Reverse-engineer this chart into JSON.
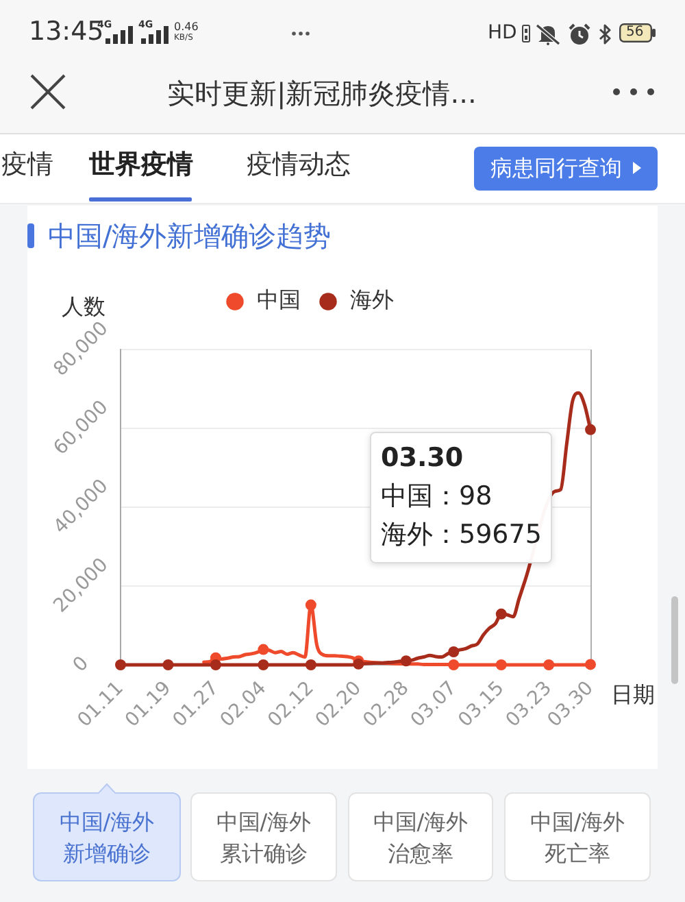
{
  "chart_data": {
    "type": "line",
    "title": "中国/海外新增确诊趋势",
    "ylabel": "人数",
    "xlabel": "日期",
    "categories": [
      "01.11",
      null,
      null,
      null,
      null,
      null,
      null,
      null,
      "01.19",
      null,
      null,
      null,
      null,
      null,
      null,
      null,
      "01.27",
      null,
      null,
      null,
      null,
      null,
      null,
      null,
      "02.04",
      null,
      null,
      null,
      null,
      null,
      null,
      null,
      "02.12",
      null,
      null,
      null,
      null,
      null,
      null,
      null,
      "02.20",
      null,
      null,
      null,
      null,
      null,
      null,
      null,
      "02.28",
      null,
      null,
      null,
      null,
      null,
      null,
      null,
      "03.07",
      null,
      null,
      null,
      null,
      null,
      null,
      null,
      "03.15",
      null,
      null,
      null,
      null,
      null,
      null,
      null,
      "03.23",
      null,
      null,
      null,
      null,
      null,
      null,
      "03.30"
    ],
    "series": [
      {
        "name": "中国",
        "color": "#ee4a2b",
        "values": [
          null,
          null,
          null,
          null,
          null,
          null,
          null,
          null,
          null,
          null,
          null,
          null,
          null,
          null,
          700,
          800,
          1800,
          1500,
          1700,
          2000,
          2100,
          2600,
          2800,
          3200,
          3900,
          3700,
          3100,
          3400,
          2700,
          3100,
          2500,
          2000,
          15200,
          5000,
          2600,
          2300,
          2300,
          2200,
          2100,
          1800,
          1000,
          null,
          null,
          null,
          null,
          null,
          null,
          null,
          null,
          null,
          200,
          100,
          100,
          100,
          100,
          100,
          0,
          0,
          0,
          0,
          0,
          0,
          0,
          0,
          0,
          0,
          0,
          0,
          0,
          0,
          0,
          0,
          0,
          0,
          0,
          0,
          0,
          0,
          0,
          98
        ]
      },
      {
        "name": "海外",
        "color": "#a82c1c",
        "values": [
          0,
          0,
          0,
          0,
          0,
          0,
          0,
          0,
          0,
          0,
          0,
          0,
          0,
          0,
          0,
          0,
          0,
          0,
          0,
          0,
          0,
          0,
          0,
          0,
          0,
          0,
          0,
          0,
          0,
          0,
          0,
          0,
          0,
          0,
          0,
          0,
          0,
          0,
          0,
          0,
          200,
          300,
          400,
          500,
          500,
          600,
          700,
          900,
          1000,
          1200,
          1700,
          2000,
          2400,
          2100,
          2000,
          2800,
          3300,
          3800,
          4100,
          4800,
          5300,
          7600,
          9300,
          10400,
          12900,
          12700,
          12200,
          16800,
          21400,
          null,
          null,
          null,
          null,
          44000,
          44500,
          56000,
          67000,
          69000,
          66000,
          59675
        ]
      }
    ],
    "ylim": [
      0,
      80000
    ],
    "yticks": [
      0,
      {
        "value": 20000,
        "label": "20,000"
      },
      {
        "value": 40000,
        "label": "40,000"
      },
      {
        "value": 60000,
        "label": "60,000"
      },
      {
        "value": 80000,
        "label": "80,000"
      }
    ],
    "grid": "y",
    "legend": "top",
    "line_style": "solid",
    "annotations": [
      "13:45",
      "4G",
      "4G",
      "0.46",
      "KB/S",
      "HD",
      "56",
      "实时更新|新冠肺炎疫情...",
      "疫情",
      "世界疫情",
      "疫情动态",
      "病患同行查询",
      "03.30",
      "中国：98",
      "海外：59675",
      "中国/海外新增确诊",
      "中国/海外累计确诊",
      "中国/海外治愈率",
      "中国/海外死亡率"
    ]
  }
}
